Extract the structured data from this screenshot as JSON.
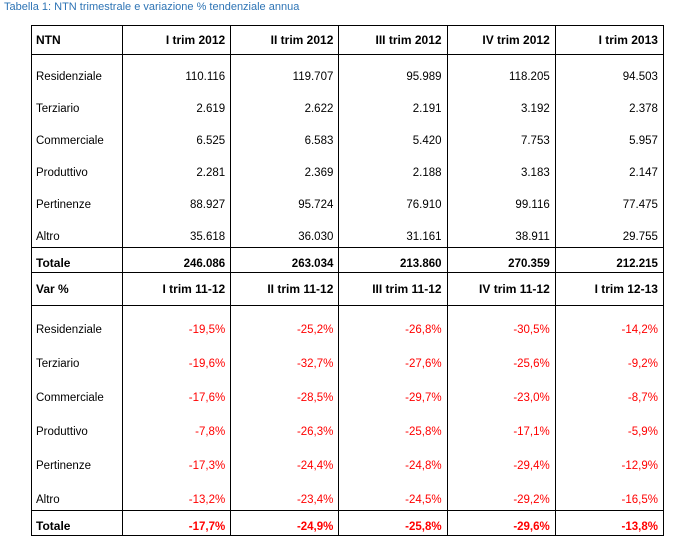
{
  "caption": "Tabella 1: NTN trimestrale e variazione % tendenziale annua",
  "ntn": {
    "header": [
      "NTN",
      "I trim 2012",
      "II trim 2012",
      "III trim 2012",
      "IV trim 2012",
      "I trim 2013"
    ],
    "rows": [
      {
        "label": "Residenziale",
        "values": [
          "110.116",
          "119.707",
          "95.989",
          "118.205",
          "94.503"
        ]
      },
      {
        "label": "Terziario",
        "values": [
          "2.619",
          "2.622",
          "2.191",
          "3.192",
          "2.378"
        ]
      },
      {
        "label": "Commerciale",
        "values": [
          "6.525",
          "6.583",
          "5.420",
          "7.753",
          "5.957"
        ]
      },
      {
        "label": "Produttivo",
        "values": [
          "2.281",
          "2.369",
          "2.188",
          "3.183",
          "2.147"
        ]
      },
      {
        "label": "Pertinenze",
        "values": [
          "88.927",
          "95.724",
          "76.910",
          "99.116",
          "77.475"
        ]
      },
      {
        "label": "Altro",
        "values": [
          "35.618",
          "36.030",
          "31.161",
          "38.911",
          "29.755"
        ]
      }
    ],
    "total": {
      "label": "Totale",
      "values": [
        "246.086",
        "263.034",
        "213.860",
        "270.359",
        "212.215"
      ]
    }
  },
  "var": {
    "header": [
      "Var %",
      "I trim 11-12",
      "II trim 11-12",
      "III trim 11-12",
      "IV trim 11-12",
      "I trim 12-13"
    ],
    "rows": [
      {
        "label": "Residenziale",
        "values": [
          "-19,5%",
          "-25,2%",
          "-26,8%",
          "-30,5%",
          "-14,2%"
        ]
      },
      {
        "label": "Terziario",
        "values": [
          "-19,6%",
          "-32,7%",
          "-27,6%",
          "-25,6%",
          "-9,2%"
        ]
      },
      {
        "label": "Commerciale",
        "values": [
          "-17,6%",
          "-28,5%",
          "-29,7%",
          "-23,0%",
          "-8,7%"
        ]
      },
      {
        "label": "Produttivo",
        "values": [
          "-7,8%",
          "-26,3%",
          "-25,8%",
          "-17,1%",
          "-5,9%"
        ]
      },
      {
        "label": "Pertinenze",
        "values": [
          "-17,3%",
          "-24,4%",
          "-24,8%",
          "-29,4%",
          "-12,9%"
        ]
      },
      {
        "label": "Altro",
        "values": [
          "-13,2%",
          "-23,4%",
          "-24,5%",
          "-29,2%",
          "-16,5%"
        ]
      }
    ],
    "total": {
      "label": "Totale",
      "values": [
        "-17,7%",
        "-24,9%",
        "-25,8%",
        "-29,6%",
        "-13,8%"
      ]
    }
  },
  "colors": {
    "caption": "#2e74b5",
    "negative": "#ff0000"
  }
}
